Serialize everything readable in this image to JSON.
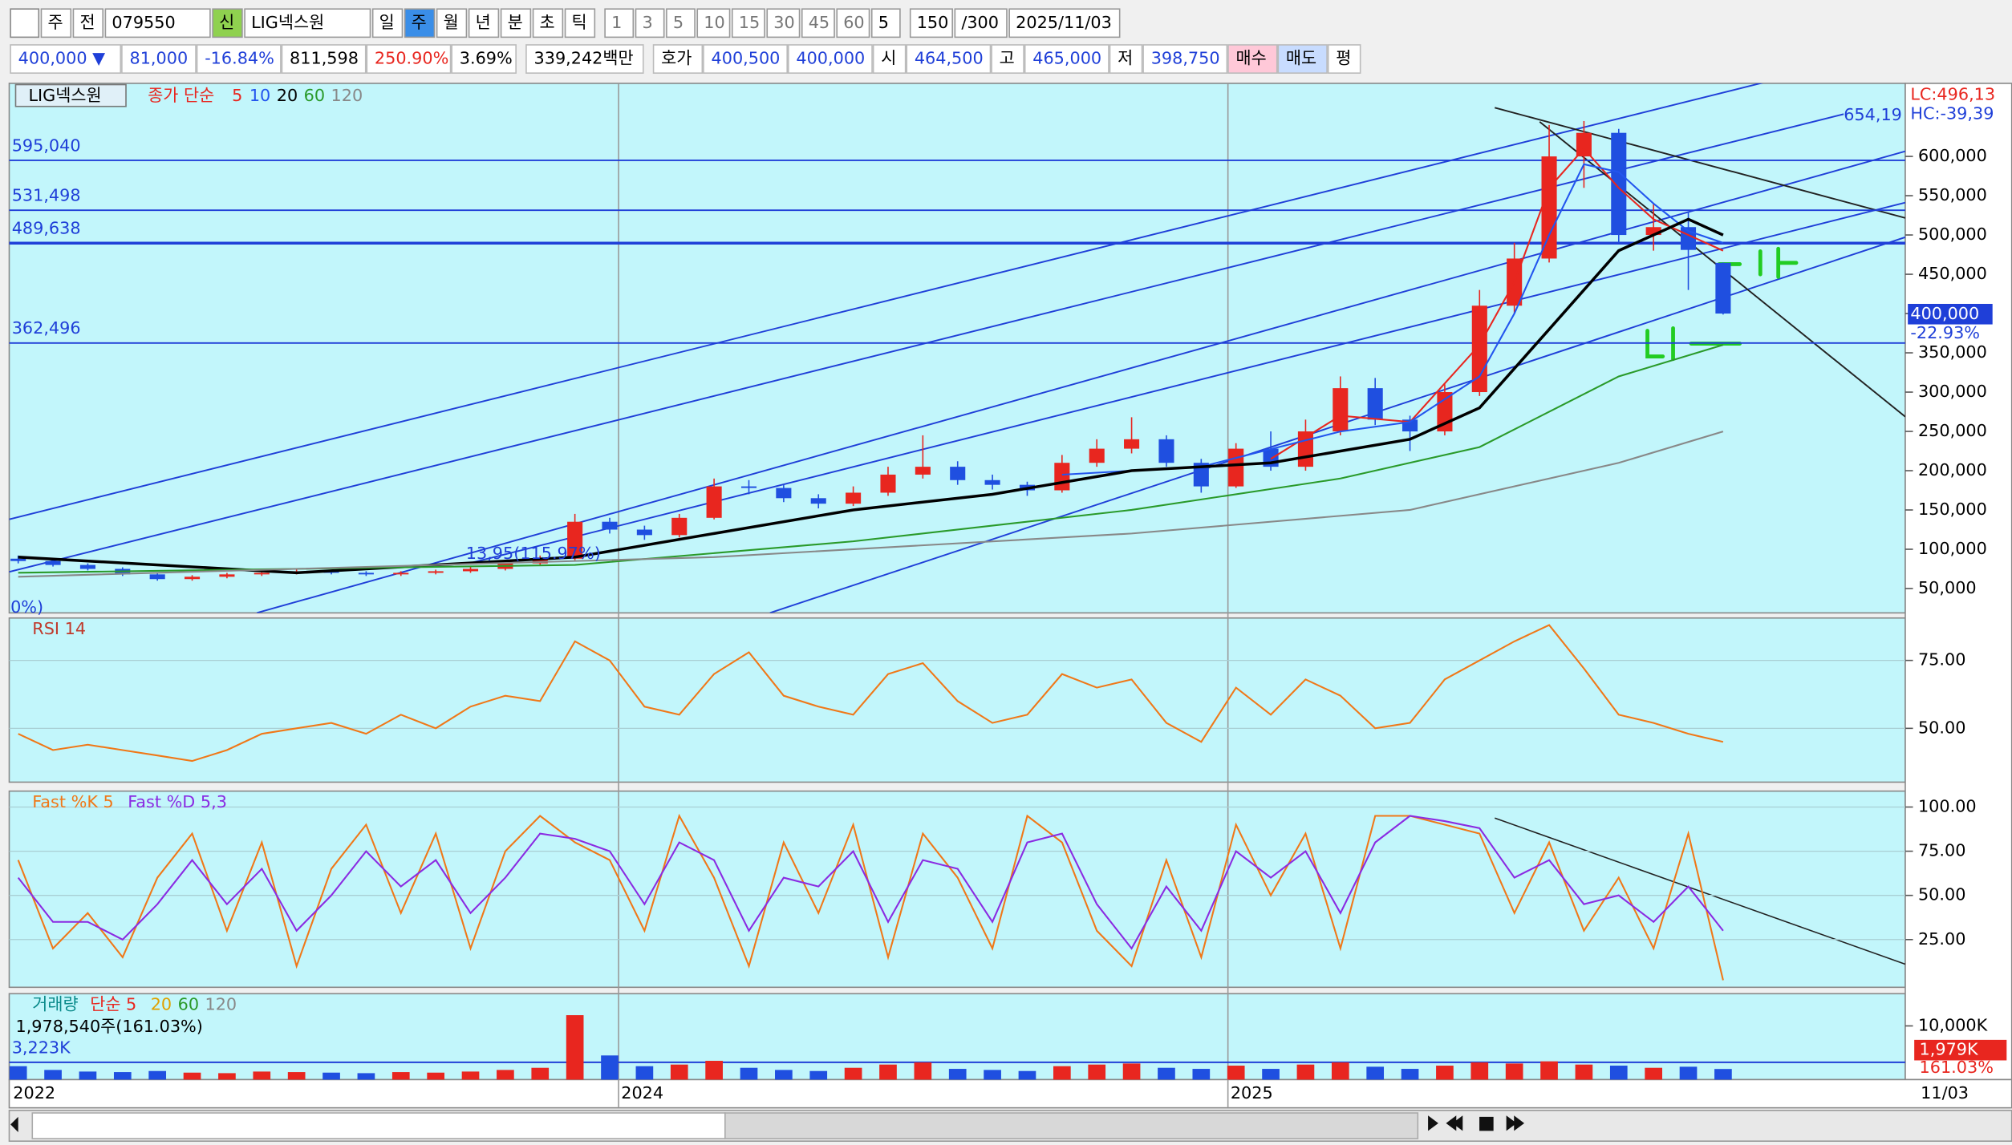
{
  "toolbar": {
    "row1": [
      "주",
      "전",
      "079550",
      "신",
      "LIG넥스원",
      "일",
      "주",
      "월",
      "년",
      "분",
      "초",
      "틱",
      "1",
      "3",
      "5",
      "10",
      "15",
      "30",
      "45",
      "60",
      "5",
      "150",
      "/300",
      "2025/11/03"
    ],
    "row2": [
      "400,000 ▼",
      "81,000",
      "-16.84%",
      "811,598",
      "250.90%",
      "3.69%",
      "339,242백만",
      "호가",
      "400,500",
      "400,000",
      "시",
      "464,500",
      "고",
      "465,000",
      "저",
      "398,750",
      "매수",
      "매도",
      "평"
    ]
  },
  "date_axis": [
    "2022",
    "2024",
    "2025",
    "11/03"
  ],
  "chart_data": [
    {
      "type": "candlestick",
      "title": "LIG넥스원",
      "legend_prefix": "종가 단순",
      "ylim": [
        19000,
        693000
      ],
      "yticks": [
        {
          "value": 50000,
          "label": "50,000"
        },
        {
          "value": 100000,
          "label": "100,000"
        },
        {
          "value": 150000,
          "label": "150,000"
        },
        {
          "value": 200000,
          "label": "200,000"
        },
        {
          "value": 250000,
          "label": "250,000"
        },
        {
          "value": 300000,
          "label": "300,000"
        },
        {
          "value": 350000,
          "label": "350,000"
        },
        {
          "value": 400000,
          "label": "400,000"
        },
        {
          "value": 450000,
          "label": "450,000"
        },
        {
          "value": 500000,
          "label": "500,000"
        },
        {
          "value": 550000,
          "label": "550,000"
        },
        {
          "value": 600000,
          "label": "600,000"
        }
      ],
      "candles": [
        [
          88000,
          92000,
          82000,
          85000
        ],
        [
          85000,
          87000,
          78000,
          80000
        ],
        [
          80000,
          82000,
          73000,
          75000
        ],
        [
          75000,
          77000,
          66000,
          68000
        ],
        [
          68000,
          70000,
          60000,
          62000
        ],
        [
          62000,
          67000,
          60000,
          65000
        ],
        [
          65000,
          70000,
          63000,
          68000
        ],
        [
          68000,
          72000,
          66000,
          70000
        ],
        [
          70000,
          74000,
          68000,
          72000
        ],
        [
          72000,
          74000,
          68000,
          70000
        ],
        [
          70000,
          72000,
          66000,
          68000
        ],
        [
          68000,
          72000,
          66000,
          70000
        ],
        [
          70000,
          74000,
          68000,
          72000
        ],
        [
          72000,
          78000,
          70000,
          75000
        ],
        [
          75000,
          85000,
          73000,
          82000
        ],
        [
          82000,
          92000,
          80000,
          88000
        ],
        [
          88000,
          145000,
          86000,
          135000
        ],
        [
          135000,
          140000,
          120000,
          125000
        ],
        [
          125000,
          130000,
          112000,
          118000
        ],
        [
          118000,
          145000,
          115000,
          140000
        ],
        [
          140000,
          190000,
          138000,
          180000
        ],
        [
          180000,
          188000,
          170000,
          178000
        ],
        [
          178000,
          182000,
          160000,
          165000
        ],
        [
          165000,
          170000,
          152000,
          158000
        ],
        [
          158000,
          180000,
          155000,
          172000
        ],
        [
          172000,
          205000,
          168000,
          195000
        ],
        [
          195000,
          245000,
          190000,
          205000
        ],
        [
          205000,
          212000,
          182000,
          188000
        ],
        [
          188000,
          195000,
          176000,
          182000
        ],
        [
          182000,
          186000,
          168000,
          175000
        ],
        [
          175000,
          220000,
          172000,
          210000
        ],
        [
          210000,
          240000,
          205000,
          228000
        ],
        [
          228000,
          268000,
          222000,
          240000
        ],
        [
          240000,
          245000,
          205000,
          210000
        ],
        [
          210000,
          215000,
          172000,
          180000
        ],
        [
          180000,
          235000,
          178000,
          228000
        ],
        [
          228000,
          250000,
          200000,
          205000
        ],
        [
          205000,
          265000,
          200000,
          250000
        ],
        [
          250000,
          320000,
          245000,
          305000
        ],
        [
          305000,
          318000,
          258000,
          265000
        ],
        [
          265000,
          270000,
          225000,
          250000
        ],
        [
          250000,
          310000,
          245000,
          300000
        ],
        [
          300000,
          430000,
          295000,
          410000
        ],
        [
          410000,
          490000,
          400000,
          470000
        ],
        [
          470000,
          640000,
          465000,
          600000
        ],
        [
          600000,
          645000,
          560000,
          630000
        ],
        [
          630000,
          635000,
          490000,
          500000
        ],
        [
          500000,
          540000,
          480000,
          510000
        ],
        [
          510000,
          530000,
          430000,
          481000
        ],
        [
          464500,
          465000,
          398750,
          400000
        ]
      ],
      "series": [
        {
          "name": "5",
          "color": "#e8261f",
          "x": [
            36,
            38,
            40,
            42,
            43,
            44,
            45,
            46,
            47,
            48,
            49
          ],
          "values": [
            215000,
            270000,
            262000,
            360000,
            440000,
            560000,
            610000,
            560000,
            520000,
            500000,
            480000
          ]
        },
        {
          "name": "10",
          "color": "#2255ee",
          "x": [
            30,
            34,
            38,
            40,
            42,
            43,
            44,
            45,
            46,
            47,
            48,
            49
          ],
          "values": [
            195000,
            205000,
            250000,
            262000,
            320000,
            400000,
            500000,
            590000,
            580000,
            540000,
            505000,
            490000
          ]
        },
        {
          "name": "20",
          "color": "#000000",
          "x": [
            0,
            8,
            16,
            20,
            24,
            28,
            32,
            36,
            40,
            42,
            44,
            46,
            48,
            49
          ],
          "values": [
            90000,
            70000,
            90000,
            120000,
            150000,
            170000,
            200000,
            210000,
            240000,
            280000,
            380000,
            480000,
            520000,
            500000
          ]
        },
        {
          "name": "60",
          "color": "#2a9a2a",
          "x": [
            0,
            16,
            24,
            32,
            38,
            42,
            46,
            49
          ],
          "values": [
            70000,
            80000,
            110000,
            150000,
            190000,
            230000,
            320000,
            360000
          ]
        },
        {
          "name": "120",
          "color": "#888888",
          "x": [
            0,
            20,
            32,
            40,
            46,
            49
          ],
          "values": [
            65000,
            90000,
            120000,
            150000,
            210000,
            250000
          ]
        }
      ],
      "levels": [
        {
          "value": 595040,
          "label": "595,040"
        },
        {
          "value": 531498,
          "label": "531,498"
        },
        {
          "value": 489638,
          "label": "489,638"
        },
        {
          "value": 362496,
          "label": "362,496"
        }
      ],
      "annotations": [
        "654,19",
        "13,95(115.97%)",
        "0%)"
      ],
      "tags": [
        "LC:496,13",
        "HC:-39,39",
        "400,000",
        "-22.93%"
      ]
    },
    {
      "type": "line",
      "title": "RSI 14",
      "color": "#f07818",
      "ylim": [
        30.2,
        90.6
      ],
      "yticks": [
        {
          "value": 50,
          "label": "50.00"
        },
        {
          "value": 75,
          "label": "75.00"
        }
      ],
      "values": [
        48,
        42,
        44,
        42,
        40,
        38,
        42,
        48,
        50,
        52,
        48,
        55,
        50,
        58,
        62,
        60,
        82,
        75,
        58,
        55,
        70,
        78,
        62,
        58,
        55,
        70,
        74,
        60,
        52,
        55,
        70,
        65,
        68,
        52,
        45,
        65,
        55,
        68,
        62,
        50,
        52,
        68,
        75,
        82,
        88,
        72,
        55,
        52,
        48,
        45
      ]
    },
    {
      "type": "line",
      "ylim": [
        -2,
        109
      ],
      "yticks": [
        {
          "value": 25,
          "label": "25.00"
        },
        {
          "value": 50,
          "label": "50.00"
        },
        {
          "value": 75,
          "label": "75.00"
        },
        {
          "value": 100,
          "label": "100.00"
        }
      ],
      "series": [
        {
          "name": "Fast %K 5",
          "color": "#f07818",
          "values": [
            70,
            20,
            40,
            15,
            60,
            85,
            30,
            80,
            10,
            65,
            90,
            40,
            85,
            20,
            75,
            95,
            80,
            70,
            30,
            95,
            60,
            10,
            80,
            40,
            90,
            15,
            85,
            60,
            20,
            95,
            80,
            30,
            10,
            70,
            15,
            90,
            50,
            85,
            20,
            95,
            95,
            90,
            85,
            40,
            80,
            30,
            60,
            20,
            85,
            2
          ]
        },
        {
          "name": "Fast %D 5,3",
          "color": "#8a2be2",
          "values": [
            60,
            35,
            35,
            25,
            45,
            70,
            45,
            65,
            30,
            50,
            75,
            55,
            70,
            40,
            60,
            85,
            82,
            75,
            45,
            80,
            70,
            30,
            60,
            55,
            75,
            35,
            70,
            65,
            35,
            80,
            85,
            45,
            20,
            55,
            30,
            75,
            60,
            75,
            40,
            80,
            95,
            92,
            88,
            60,
            70,
            45,
            50,
            35,
            55,
            30
          ]
        }
      ]
    },
    {
      "type": "bar",
      "title": "거래량",
      "legend": [
        {
          "name": "단순 5",
          "color": "#e8261f"
        },
        {
          "name": "20",
          "color": "#e0a000"
        },
        {
          "name": "60",
          "color": "#2a9a2a"
        },
        {
          "name": "120",
          "color": "#888888"
        }
      ],
      "ylim": [
        0,
        16000
      ],
      "yticks": [
        {
          "value": 10000,
          "label": "10,000K"
        }
      ],
      "colors": [
        "#e8261f",
        "#1f4fe0"
      ],
      "values": [
        2500,
        1800,
        1500,
        1400,
        1600,
        1300,
        1200,
        1500,
        1400,
        1300,
        1200,
        1400,
        1300,
        1500,
        1800,
        2200,
        12000,
        4500,
        2500,
        2800,
        3500,
        2200,
        1800,
        1600,
        2200,
        2800,
        3200,
        2000,
        1800,
        1600,
        2500,
        2800,
        3000,
        2200,
        2000,
        2600,
        2000,
        2800,
        3200,
        2400,
        2000,
        2600,
        3200,
        3000,
        3400,
        2800,
        2600,
        2200,
        2400,
        1979
      ],
      "level": {
        "value": 3223,
        "label": "3,223K"
      },
      "annotation": "1,978,540주(161.03%)",
      "tags": [
        "1,979K",
        "161.03%"
      ]
    }
  ]
}
